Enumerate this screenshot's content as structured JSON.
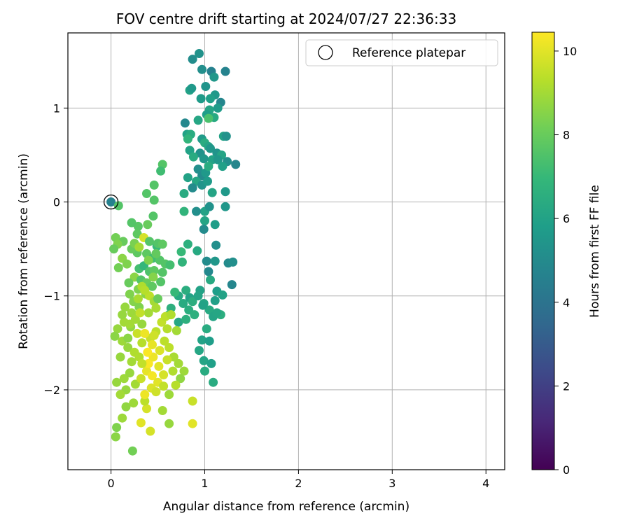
{
  "chart_data": {
    "type": "scatter",
    "title": "FOV centre drift starting at 2024/07/27 22:36:33",
    "xlabel": "Angular distance from reference (arcmin)",
    "ylabel": "Rotation from reference (arcmin)",
    "xlim": [
      -0.46,
      4.2
    ],
    "ylim": [
      -2.85,
      1.8
    ],
    "xticks": [
      0,
      1,
      2,
      3,
      4
    ],
    "yticks": [
      -2,
      -1,
      0,
      1
    ],
    "grid": true,
    "legend": {
      "placement": "top-right",
      "entries": [
        "Reference platepar"
      ]
    },
    "reference_point": {
      "name": "Reference platepar",
      "x": 0,
      "y": 0
    },
    "colorbar": {
      "label": "Hours from first FF file",
      "colormap": "viridis",
      "range": [
        0,
        10.45
      ],
      "ticks": [
        0,
        2,
        4,
        6,
        8,
        10
      ]
    },
    "colormap_stops": [
      "#440154",
      "#482878",
      "#3e4989",
      "#31688e",
      "#26828e",
      "#1f9e89",
      "#35b779",
      "#6ece58",
      "#b5de2b",
      "#fde725"
    ],
    "series": [
      {
        "points": [
          [
            0.0,
            0.0,
            4.6
          ],
          [
            0.08,
            -0.04,
            7.6
          ],
          [
            0.87,
            1.52,
            5.1
          ],
          [
            0.94,
            1.58,
            5.3
          ],
          [
            1.07,
            1.39,
            4.6
          ],
          [
            1.22,
            1.39,
            4.7
          ],
          [
            0.97,
            1.41,
            5.2
          ],
          [
            1.1,
            1.33,
            5.5
          ],
          [
            0.84,
            1.19,
            6.0
          ],
          [
            0.86,
            1.21,
            5.6
          ],
          [
            1.01,
            1.23,
            5.4
          ],
          [
            1.11,
            1.14,
            5.6
          ],
          [
            0.96,
            1.1,
            5.7
          ],
          [
            1.06,
            1.1,
            5.9
          ],
          [
            1.17,
            1.06,
            4.8
          ],
          [
            1.05,
            0.98,
            6.1
          ],
          [
            1.14,
            1.0,
            5.7
          ],
          [
            1.02,
            0.93,
            5.8
          ],
          [
            0.93,
            0.87,
            6.2
          ],
          [
            1.1,
            0.9,
            6.3
          ],
          [
            1.04,
            0.89,
            7.4
          ],
          [
            0.79,
            0.84,
            4.9
          ],
          [
            0.81,
            0.72,
            6.0
          ],
          [
            0.85,
            0.72,
            6.4
          ],
          [
            0.97,
            0.67,
            5.7
          ],
          [
            1.2,
            0.7,
            6.0
          ],
          [
            1.23,
            0.7,
            5.3
          ],
          [
            1.0,
            0.63,
            6.4
          ],
          [
            1.04,
            0.59,
            6.1
          ],
          [
            0.82,
            0.67,
            6.8
          ],
          [
            0.84,
            0.55,
            6.0
          ],
          [
            0.95,
            0.52,
            5.3
          ],
          [
            1.06,
            0.57,
            5.5
          ],
          [
            1.13,
            0.52,
            5.4
          ],
          [
            1.18,
            0.5,
            6.1
          ],
          [
            1.24,
            0.43,
            5.2
          ],
          [
            1.33,
            0.4,
            4.8
          ],
          [
            0.88,
            0.48,
            6.4
          ],
          [
            0.93,
            0.35,
            5.2
          ],
          [
            0.97,
            0.28,
            5.0
          ],
          [
            1.01,
            0.31,
            5.6
          ],
          [
            1.08,
            0.45,
            6.0
          ],
          [
            1.14,
            0.45,
            5.5
          ],
          [
            1.19,
            0.38,
            5.9
          ],
          [
            0.99,
            0.46,
            5.5
          ],
          [
            1.04,
            0.38,
            6.4
          ],
          [
            0.82,
            0.26,
            6.0
          ],
          [
            0.91,
            0.22,
            6.2
          ],
          [
            0.97,
            0.18,
            5.4
          ],
          [
            1.03,
            0.22,
            5.7
          ],
          [
            1.08,
            0.1,
            6.1
          ],
          [
            1.22,
            0.11,
            5.6
          ],
          [
            0.87,
            0.15,
            5.0
          ],
          [
            0.78,
            0.09,
            6.4
          ],
          [
            1.0,
            -0.1,
            6.0
          ],
          [
            1.05,
            -0.05,
            5.3
          ],
          [
            1.22,
            -0.05,
            5.5
          ],
          [
            0.78,
            -0.1,
            6.8
          ],
          [
            0.91,
            -0.1,
            5.2
          ],
          [
            1.0,
            -0.2,
            6.1
          ],
          [
            0.99,
            -0.29,
            5.0
          ],
          [
            1.11,
            -0.24,
            5.8
          ],
          [
            1.12,
            -0.46,
            5.2
          ],
          [
            1.02,
            -0.63,
            5.0
          ],
          [
            1.11,
            -0.63,
            5.5
          ],
          [
            1.04,
            -0.74,
            4.9
          ],
          [
            1.25,
            -0.65,
            5.0
          ],
          [
            1.3,
            -0.64,
            5.2
          ],
          [
            1.29,
            -0.88,
            4.8
          ],
          [
            1.06,
            -0.83,
            6.3
          ],
          [
            1.13,
            -0.95,
            5.8
          ],
          [
            1.19,
            -0.99,
            6.0
          ],
          [
            0.95,
            -0.94,
            6.0
          ],
          [
            0.99,
            -1.08,
            6.2
          ],
          [
            1.05,
            -1.15,
            6.3
          ],
          [
            1.09,
            -1.22,
            6.1
          ],
          [
            1.17,
            -1.2,
            6.5
          ],
          [
            1.02,
            -1.35,
            6.4
          ],
          [
            0.98,
            -1.1,
            6.0
          ],
          [
            1.11,
            -1.05,
            5.9
          ],
          [
            0.97,
            -1.47,
            6.0
          ],
          [
            1.05,
            -1.48,
            5.8
          ],
          [
            0.99,
            -1.69,
            6.1
          ],
          [
            1.0,
            -1.8,
            6.4
          ],
          [
            1.07,
            -1.72,
            5.9
          ],
          [
            1.09,
            -1.92,
            6.4
          ],
          [
            0.94,
            -1.58,
            6.2
          ],
          [
            1.13,
            -1.18,
            6.2
          ],
          [
            0.72,
            -1.0,
            6.3
          ],
          [
            0.8,
            -0.94,
            6.5
          ],
          [
            0.84,
            -1.02,
            6.0
          ],
          [
            0.77,
            -1.08,
            6.4
          ],
          [
            0.83,
            -1.15,
            6.5
          ],
          [
            0.72,
            -1.28,
            6.2
          ],
          [
            0.8,
            -1.25,
            6.6
          ],
          [
            0.89,
            -1.2,
            6.6
          ],
          [
            0.76,
            -0.64,
            6.8
          ],
          [
            0.75,
            -0.53,
            7.0
          ],
          [
            0.82,
            -0.45,
            6.6
          ],
          [
            0.92,
            -0.52,
            6.3
          ],
          [
            0.87,
            -1.06,
            6.5
          ],
          [
            0.93,
            -1.0,
            6.1
          ],
          [
            0.68,
            -0.96,
            7.0
          ],
          [
            0.64,
            -1.13,
            6.6
          ],
          [
            0.62,
            -1.2,
            7.4
          ],
          [
            0.55,
            0.4,
            7.6
          ],
          [
            0.53,
            0.33,
            7.2
          ],
          [
            0.46,
            0.18,
            7.6
          ],
          [
            0.38,
            0.09,
            7.6
          ],
          [
            0.46,
            0.02,
            7.6
          ],
          [
            0.45,
            -0.15,
            7.6
          ],
          [
            0.39,
            -0.24,
            8.0
          ],
          [
            0.29,
            -0.26,
            7.7
          ],
          [
            0.22,
            -0.22,
            7.6
          ],
          [
            0.28,
            -0.34,
            7.8
          ],
          [
            0.35,
            -0.38,
            9.8
          ],
          [
            0.41,
            -0.42,
            7.6
          ],
          [
            0.49,
            -0.47,
            7.0
          ],
          [
            0.5,
            -0.44,
            7.6
          ],
          [
            0.55,
            -0.45,
            7.8
          ],
          [
            0.05,
            -0.38,
            8.2
          ],
          [
            0.13,
            -0.42,
            8.0
          ],
          [
            0.07,
            -0.45,
            8.4
          ],
          [
            0.03,
            -0.5,
            8.0
          ],
          [
            0.28,
            -0.54,
            7.8
          ],
          [
            0.38,
            -0.55,
            7.8
          ],
          [
            0.44,
            -0.6,
            7.2
          ],
          [
            0.52,
            -0.62,
            7.6
          ],
          [
            0.58,
            -0.66,
            7.6
          ],
          [
            0.63,
            -0.67,
            7.3
          ],
          [
            0.12,
            -0.6,
            8.6
          ],
          [
            0.08,
            -0.7,
            8.2
          ],
          [
            0.17,
            -0.66,
            8.4
          ],
          [
            0.3,
            -0.71,
            7.3
          ],
          [
            0.35,
            -0.68,
            6.9
          ],
          [
            0.41,
            -0.74,
            7.5
          ],
          [
            0.46,
            -0.73,
            7.8
          ],
          [
            0.25,
            -0.8,
            8.6
          ],
          [
            0.32,
            -0.83,
            7.6
          ],
          [
            0.38,
            -0.86,
            8.0
          ],
          [
            0.44,
            -0.9,
            7.8
          ],
          [
            0.53,
            -0.85,
            7.6
          ],
          [
            0.19,
            -0.86,
            8.0
          ],
          [
            0.29,
            -0.93,
            8.4
          ],
          [
            0.37,
            -0.98,
            8.6
          ],
          [
            0.33,
            -0.9,
            9.2
          ],
          [
            0.41,
            -1.0,
            9.4
          ],
          [
            0.46,
            -1.06,
            9.0
          ],
          [
            0.24,
            -1.06,
            8.5
          ],
          [
            0.3,
            -1.12,
            8.4
          ],
          [
            0.15,
            -1.12,
            8.8
          ],
          [
            0.22,
            -1.18,
            8.9
          ],
          [
            0.4,
            -1.18,
            9.0
          ],
          [
            0.48,
            -1.13,
            9.1
          ],
          [
            0.5,
            -1.03,
            8.0
          ],
          [
            0.33,
            -1.3,
            8.8
          ],
          [
            0.28,
            -1.4,
            9.6
          ],
          [
            0.21,
            -1.33,
            8.7
          ],
          [
            0.14,
            -1.28,
            9.0
          ],
          [
            0.07,
            -1.35,
            8.8
          ],
          [
            0.04,
            -1.43,
            8.6
          ],
          [
            0.12,
            -1.48,
            8.9
          ],
          [
            0.18,
            -1.55,
            8.8
          ],
          [
            0.25,
            -1.6,
            9.2
          ],
          [
            0.33,
            -1.5,
            9.3
          ],
          [
            0.42,
            -1.45,
            9.6
          ],
          [
            0.48,
            -1.38,
            9.4
          ],
          [
            0.54,
            -1.28,
            9.5
          ],
          [
            0.58,
            -1.22,
            9.4
          ],
          [
            0.64,
            -1.2,
            9.2
          ],
          [
            0.6,
            -1.35,
            9.3
          ],
          [
            0.7,
            -1.37,
            9.0
          ],
          [
            0.57,
            -1.48,
            9.4
          ],
          [
            0.62,
            -1.55,
            9.4
          ],
          [
            0.67,
            -1.65,
            9.1
          ],
          [
            0.72,
            -1.72,
            9.0
          ],
          [
            0.78,
            -1.8,
            8.9
          ],
          [
            0.74,
            -1.88,
            8.7
          ],
          [
            0.69,
            -1.95,
            9.3
          ],
          [
            0.62,
            -2.05,
            8.9
          ],
          [
            0.55,
            -2.22,
            9.0
          ],
          [
            0.62,
            -2.36,
            8.8
          ],
          [
            0.87,
            -2.12,
            9.6
          ],
          [
            0.87,
            -2.36,
            10.0
          ],
          [
            0.32,
            -2.35,
            10.0
          ],
          [
            0.42,
            -2.44,
            9.8
          ],
          [
            0.38,
            -2.2,
            9.8
          ],
          [
            0.36,
            -2.12,
            9.4
          ],
          [
            0.24,
            -2.14,
            8.9
          ],
          [
            0.16,
            -2.18,
            8.7
          ],
          [
            0.12,
            -2.3,
            8.9
          ],
          [
            0.06,
            -2.4,
            8.4
          ],
          [
            0.05,
            -2.5,
            8.6
          ],
          [
            0.23,
            -2.65,
            8.2
          ],
          [
            0.06,
            -1.92,
            8.8
          ],
          [
            0.14,
            -1.88,
            8.9
          ],
          [
            0.2,
            -1.82,
            8.8
          ],
          [
            0.26,
            -1.94,
            9.0
          ],
          [
            0.32,
            -1.88,
            9.6
          ],
          [
            0.38,
            -1.8,
            10.1
          ],
          [
            0.4,
            -1.72,
            10.4
          ],
          [
            0.45,
            -1.65,
            10.2
          ],
          [
            0.51,
            -1.75,
            10.0
          ],
          [
            0.44,
            -1.85,
            10.3
          ],
          [
            0.5,
            -1.92,
            10.0
          ],
          [
            0.56,
            -1.84,
            9.8
          ],
          [
            0.43,
            -1.98,
            9.9
          ],
          [
            0.36,
            -2.05,
            10.2
          ],
          [
            0.3,
            -1.65,
            9.2
          ],
          [
            0.22,
            -1.7,
            9.0
          ],
          [
            0.18,
            -1.45,
            8.6
          ],
          [
            0.12,
            -1.2,
            8.8
          ],
          [
            0.2,
            -1.3,
            9.0
          ],
          [
            0.36,
            -1.4,
            10.2
          ],
          [
            0.44,
            -1.52,
            10.1
          ],
          [
            0.52,
            -1.58,
            9.9
          ],
          [
            0.46,
            -1.42,
            9.7
          ],
          [
            0.39,
            -1.6,
            10.4
          ],
          [
            0.33,
            -1.72,
            9.5
          ],
          [
            0.1,
            -1.65,
            8.8
          ],
          [
            0.16,
            -2.0,
            8.8
          ],
          [
            0.1,
            -2.05,
            9.0
          ],
          [
            0.6,
            -1.68,
            9.6
          ],
          [
            0.66,
            -1.8,
            9.2
          ],
          [
            0.56,
            -1.96,
            9.5
          ],
          [
            0.48,
            -2.02,
            9.7
          ],
          [
            0.26,
            -1.25,
            9.0
          ],
          [
            0.31,
            -1.18,
            9.5
          ],
          [
            0.36,
            -0.94,
            9.3
          ],
          [
            0.29,
            -1.03,
            9.1
          ],
          [
            0.2,
            -0.98,
            8.4
          ],
          [
            0.45,
            -0.8,
            8.5
          ],
          [
            0.4,
            -0.62,
            8.4
          ],
          [
            0.22,
            -0.5,
            8.0
          ],
          [
            0.25,
            -0.44,
            8.3
          ],
          [
            0.3,
            -0.48,
            9.0
          ],
          [
            0.48,
            -0.55,
            7.9
          ],
          [
            0.55,
            -0.75,
            7.6
          ]
        ]
      }
    ]
  }
}
